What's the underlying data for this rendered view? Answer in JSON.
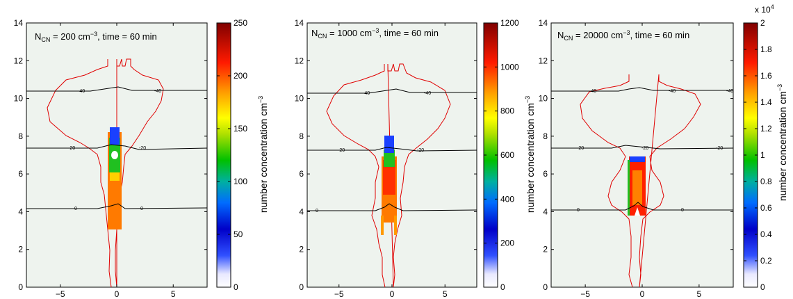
{
  "figure": {
    "panels": [
      {
        "title_prefix": "N",
        "title_sub": "CN",
        "title_mid": " = 200 cm",
        "title_sup": "−3",
        "title_suffix": ", time = 60 min",
        "colorbar_label": "number concentration cm",
        "colorbar_label_sup": "−3",
        "colorbar_ticks": [
          "0",
          "50",
          "100",
          "150",
          "200",
          "250"
        ],
        "colorbar_max": 250,
        "colorbar_multiplier": ""
      },
      {
        "title_prefix": "N",
        "title_sub": "CN",
        "title_mid": " = 1000 cm",
        "title_sup": "−3",
        "title_suffix": ", time = 60 min",
        "colorbar_label": "number concentration cm",
        "colorbar_label_sup": "−3",
        "colorbar_ticks": [
          "0",
          "200",
          "400",
          "600",
          "800",
          "1000",
          "1200"
        ],
        "colorbar_max": 1200,
        "colorbar_multiplier": ""
      },
      {
        "title_prefix": "N",
        "title_sub": "CN",
        "title_mid": " = 20000 cm",
        "title_sup": "−3",
        "title_suffix": ", time = 60 min",
        "colorbar_label": "number concentration cm",
        "colorbar_label_sup": "−3",
        "colorbar_ticks": [
          "0",
          "0.2",
          "0.4",
          "0.6",
          "0.8",
          "1",
          "1.2",
          "1.4",
          "1.6",
          "1.8",
          "2"
        ],
        "colorbar_max": 2,
        "colorbar_multiplier": "x 10",
        "colorbar_multiplier_sup": "4"
      }
    ]
  },
  "chart_data": [
    {
      "type": "heatmap",
      "title": "NCN = 200 cm−3, time = 60 min",
      "xlim": [
        -8,
        8
      ],
      "ylim": [
        0,
        14
      ],
      "xticks": [
        -5,
        0,
        5
      ],
      "yticks": [
        0,
        2,
        4,
        6,
        8,
        10,
        12,
        14
      ],
      "colorbar": {
        "min": 0,
        "max": 250,
        "label": "number concentration cm−3",
        "colormap": "jet"
      },
      "isotherm_labels": [
        "-40",
        "-40",
        "-20",
        "-20",
        "0",
        "0"
      ],
      "isotherms": [
        {
          "label": "-40",
          "y": 10.3
        },
        {
          "label": "-20",
          "y": 7.3
        },
        {
          "label": "0",
          "y": 4.1
        }
      ],
      "plume": {
        "x_center": 0,
        "y_bottom": 3.0,
        "y_top": 8.2,
        "max_value_region": [
          5.0,
          7.5
        ]
      },
      "background_color": "#eef3ee"
    },
    {
      "type": "heatmap",
      "title": "NCN = 1000 cm−3, time = 60 min",
      "xlim": [
        -8,
        8
      ],
      "ylim": [
        0,
        14
      ],
      "xticks": [
        -5,
        0,
        5
      ],
      "yticks": [
        0,
        2,
        4,
        6,
        8,
        10,
        12,
        14
      ],
      "colorbar": {
        "min": 0,
        "max": 1200,
        "label": "number concentration cm−3",
        "colormap": "jet"
      },
      "isotherm_labels": [
        "-40",
        "-40",
        "-20",
        "-20",
        "0"
      ],
      "isotherms": [
        {
          "label": "-40",
          "y": 10.3
        },
        {
          "label": "-20",
          "y": 7.3
        },
        {
          "label": "0",
          "y": 4.1
        }
      ],
      "plume": {
        "x_center": 0,
        "y_bottom": 3.3,
        "y_top": 8.0,
        "max_value_region": [
          5.0,
          7.0
        ]
      },
      "background_color": "#eef3ee"
    },
    {
      "type": "heatmap",
      "title": "NCN = 20000 cm−3, time = 60 min",
      "xlim": [
        -8,
        8
      ],
      "ylim": [
        0,
        14
      ],
      "xticks": [
        -5,
        0,
        5
      ],
      "yticks": [
        0,
        2,
        4,
        6,
        8,
        10,
        12,
        14
      ],
      "colorbar": {
        "min": 0,
        "max": 20000,
        "label": "number concentration cm−3",
        "colormap": "jet",
        "multiplier": 10000
      },
      "isotherm_labels": [
        "-40",
        "-40",
        "-40",
        "-20",
        "-20",
        "-20",
        "0",
        "0"
      ],
      "isotherms": [
        {
          "label": "-40",
          "y": 10.3
        },
        {
          "label": "-20",
          "y": 7.3
        },
        {
          "label": "0",
          "y": 4.1
        }
      ],
      "plume": {
        "x_center": 0,
        "y_bottom": 3.9,
        "y_top": 7.0,
        "max_value_region": [
          4.5,
          6.5
        ]
      },
      "background_color": "#eef3ee"
    }
  ]
}
